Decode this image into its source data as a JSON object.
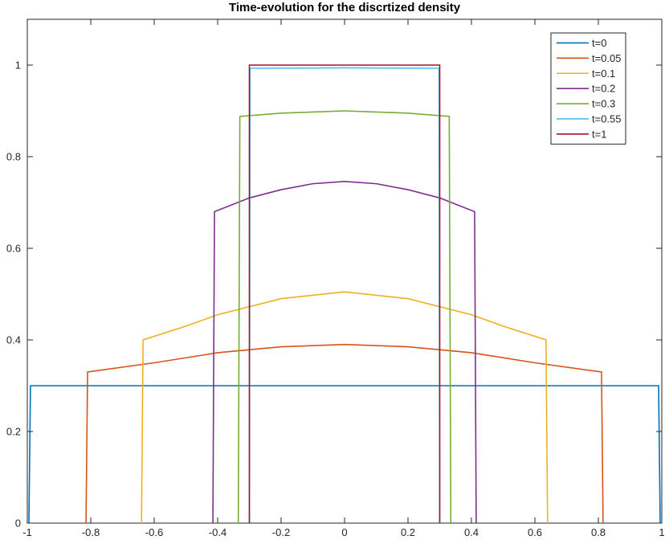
{
  "chart_data": {
    "type": "line",
    "title": "Time-evolution for the discrtized density",
    "xlabel": "",
    "ylabel": "",
    "xlim": [
      -1,
      1
    ],
    "ylim": [
      0,
      1.1
    ],
    "xticks": [
      -1,
      -0.8,
      -0.6,
      -0.4,
      -0.2,
      0,
      0.2,
      0.4,
      0.6,
      0.8,
      1
    ],
    "xtick_labels": [
      "-1",
      "-0.8",
      "-0.6",
      "-0.4",
      "-0.2",
      "0",
      "0.2",
      "0.4",
      "0.6",
      "0.8",
      "1"
    ],
    "yticks": [
      0,
      0.2,
      0.4,
      0.6,
      0.8,
      1
    ],
    "ytick_labels": [
      "0",
      "0.2",
      "0.4",
      "0.6",
      "0.8",
      "1"
    ],
    "grid": false,
    "legend_position": "top-right",
    "series": [
      {
        "name": "t=0",
        "color": "#0072BD",
        "x": [
          -0.995,
          -0.99,
          0,
          0.99,
          0.995
        ],
        "y": [
          0,
          0.3,
          0.3,
          0.3,
          0
        ]
      },
      {
        "name": "t=0.05",
        "color": "#D95319",
        "x": [
          -0.815,
          -0.81,
          -0.6,
          -0.4,
          -0.2,
          0,
          0.2,
          0.4,
          0.6,
          0.81,
          0.815
        ],
        "y": [
          0,
          0.33,
          0.35,
          0.372,
          0.385,
          0.39,
          0.385,
          0.372,
          0.35,
          0.33,
          0
        ]
      },
      {
        "name": "t=0.1",
        "color": "#EDB120",
        "x": [
          -0.64,
          -0.635,
          -0.5,
          -0.4,
          -0.2,
          0,
          0.2,
          0.4,
          0.5,
          0.635,
          0.64
        ],
        "y": [
          0,
          0.4,
          0.43,
          0.455,
          0.49,
          0.505,
          0.49,
          0.455,
          0.43,
          0.4,
          0
        ]
      },
      {
        "name": "t=0.2",
        "color": "#7E2F8E",
        "x": [
          -0.415,
          -0.41,
          -0.3,
          -0.2,
          -0.1,
          0,
          0.1,
          0.2,
          0.3,
          0.41,
          0.415
        ],
        "y": [
          0,
          0.68,
          0.71,
          0.728,
          0.741,
          0.746,
          0.741,
          0.728,
          0.71,
          0.68,
          0
        ]
      },
      {
        "name": "t=0.3",
        "color": "#77AC30",
        "x": [
          -0.335,
          -0.33,
          -0.2,
          0,
          0.2,
          0.33,
          0.335
        ],
        "y": [
          0,
          0.888,
          0.895,
          0.9,
          0.895,
          0.888,
          0
        ]
      },
      {
        "name": "t=0.55",
        "color": "#4DBEEE",
        "x": [
          -0.3,
          -0.298,
          0,
          0.298,
          0.3
        ],
        "y": [
          0,
          0.993,
          0.994,
          0.993,
          0
        ]
      },
      {
        "name": "t=1",
        "color": "#A2142F",
        "x": [
          -0.3,
          -0.3,
          0,
          0.3,
          0.3
        ],
        "y": [
          0,
          1,
          1,
          1,
          0
        ]
      }
    ]
  }
}
